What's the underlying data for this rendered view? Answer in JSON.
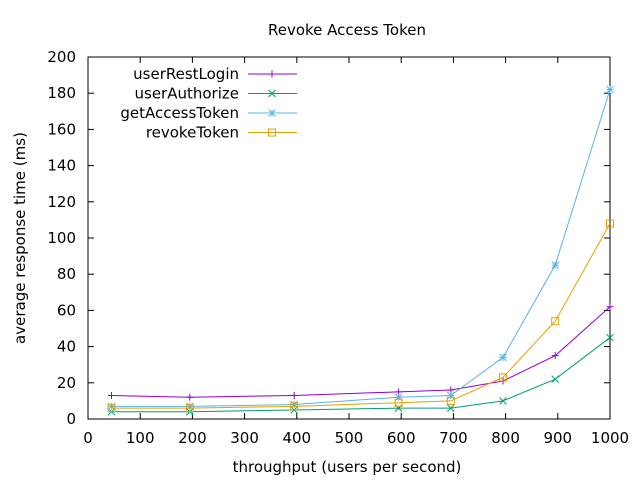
{
  "chart_data": {
    "type": "line",
    "title": "Revoke Access Token",
    "xlabel": "throughput (users per second)",
    "ylabel": "average response time (ms)",
    "xlim": [
      0,
      1000
    ],
    "ylim": [
      0,
      200
    ],
    "xticks": [
      0,
      100,
      200,
      300,
      400,
      500,
      600,
      700,
      800,
      900,
      1000
    ],
    "yticks": [
      0,
      20,
      40,
      60,
      80,
      100,
      120,
      140,
      160,
      180,
      200
    ],
    "grid": false,
    "legend_position": "top-left",
    "x": [
      45,
      195,
      395,
      595,
      695,
      795,
      895,
      1000
    ],
    "series": [
      {
        "name": "userRestLogin",
        "color": "#9400d3",
        "marker": "plus",
        "values": [
          13,
          12,
          13,
          15,
          16,
          21,
          35,
          62
        ]
      },
      {
        "name": "userAuthorize",
        "color": "#009e73",
        "marker": "cross",
        "values": [
          4,
          4,
          5,
          6,
          6,
          10,
          22,
          45
        ]
      },
      {
        "name": "getAccessToken",
        "color": "#56b4e9",
        "marker": "star",
        "values": [
          7,
          7,
          8,
          12,
          13,
          34,
          85,
          182
        ]
      },
      {
        "name": "revokeToken",
        "color": "#e69f00",
        "marker": "square",
        "values": [
          6,
          6,
          7,
          9,
          10,
          23,
          54,
          108
        ]
      }
    ]
  }
}
